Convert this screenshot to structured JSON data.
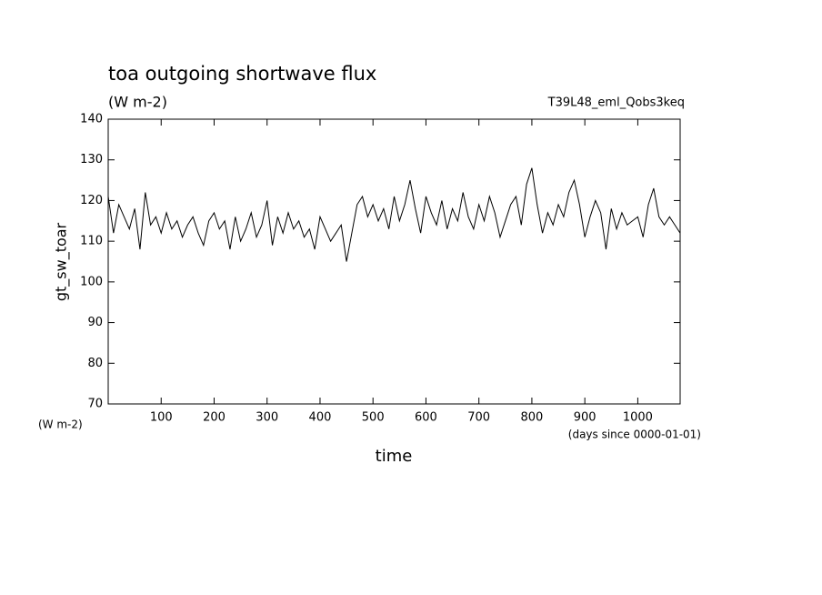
{
  "chart_data": {
    "type": "line",
    "title": "toa outgoing shortwave flux",
    "subtitle": "(W m-2)",
    "annotation": "T39L48_eml_Qobs3keq",
    "y_label": "gt_sw_toar",
    "y_unit": "(W m-2)",
    "x_label": "time",
    "x_unit": "(days since 0000-01-01)",
    "x": [
      0,
      10,
      20,
      30,
      40,
      50,
      60,
      70,
      80,
      90,
      100,
      110,
      120,
      130,
      140,
      150,
      160,
      170,
      180,
      190,
      200,
      210,
      220,
      230,
      240,
      250,
      260,
      270,
      280,
      290,
      300,
      310,
      320,
      330,
      340,
      350,
      360,
      370,
      380,
      390,
      400,
      410,
      420,
      430,
      440,
      450,
      460,
      470,
      480,
      490,
      500,
      510,
      520,
      530,
      540,
      550,
      560,
      570,
      580,
      590,
      600,
      610,
      620,
      630,
      640,
      650,
      660,
      670,
      680,
      690,
      700,
      710,
      720,
      730,
      740,
      750,
      760,
      770,
      780,
      790,
      800,
      810,
      820,
      830,
      840,
      850,
      860,
      870,
      880,
      890,
      900,
      910,
      920,
      930,
      940,
      950,
      960,
      970,
      980,
      990,
      1000,
      1010,
      1020,
      1030,
      1040,
      1050,
      1060,
      1070,
      1080
    ],
    "series": [
      {
        "name": "gt_sw_toar",
        "color": "#000000",
        "values": [
          121,
          112,
          119,
          116,
          113,
          118,
          108,
          122,
          114,
          116,
          112,
          117,
          113,
          115,
          111,
          114,
          116,
          112,
          109,
          115,
          117,
          113,
          115,
          108,
          116,
          110,
          113,
          117,
          111,
          114,
          120,
          109,
          116,
          112,
          117,
          113,
          115,
          111,
          113,
          108,
          116,
          113,
          110,
          112,
          114,
          105,
          112,
          119,
          121,
          116,
          119,
          115,
          118,
          113,
          121,
          115,
          119,
          125,
          118,
          112,
          121,
          117,
          114,
          120,
          113,
          118,
          115,
          122,
          116,
          113,
          119,
          115,
          121,
          117,
          111,
          115,
          119,
          121,
          114,
          124,
          128,
          119,
          112,
          117,
          114,
          119,
          116,
          122,
          125,
          119,
          111,
          116,
          120,
          117,
          108,
          118,
          113,
          117,
          114,
          115,
          116,
          111,
          119,
          123,
          116,
          114,
          116,
          114,
          112
        ]
      }
    ],
    "xlim": [
      0,
      1080
    ],
    "ylim": [
      70,
      140
    ],
    "xticks": [
      100,
      200,
      300,
      400,
      500,
      600,
      700,
      800,
      900,
      1000
    ],
    "yticks": [
      70,
      80,
      90,
      100,
      110,
      120,
      130,
      140
    ]
  }
}
